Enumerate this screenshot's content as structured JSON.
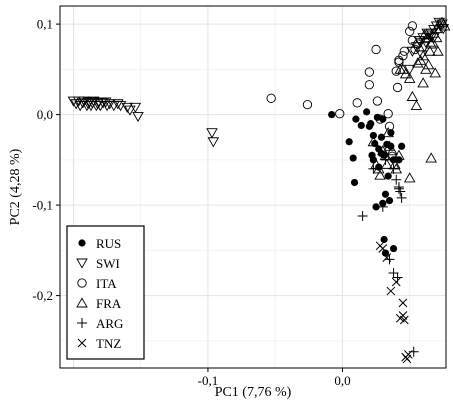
{
  "chart_data": {
    "type": "scatter",
    "title": "",
    "xlabel": "PC1 (7,76 %)",
    "ylabel": "PC2 (4,28 %)",
    "xlim": [
      -0.21,
      0.077
    ],
    "ylim": [
      -0.28,
      0.12
    ],
    "x_ticks": [
      -0.1,
      0.0
    ],
    "x_tick_labels": [
      "-0,1",
      "0,0"
    ],
    "y_ticks": [
      0.1,
      0.0,
      -0.1,
      -0.2
    ],
    "y_tick_labels": [
      "0,1",
      "0,0",
      "-0,1",
      "-0,2"
    ],
    "grid": true,
    "legend_position": "bottom-left",
    "series": [
      {
        "name": "RUS",
        "marker": "filled-circle",
        "points": [
          [
            -0.008,
            0.0
          ],
          [
            0.005,
            -0.03
          ],
          [
            0.009,
            -0.075
          ],
          [
            0.008,
            -0.048
          ],
          [
            0.01,
            -0.005
          ],
          [
            0.014,
            -0.012
          ],
          [
            0.02,
            -0.013
          ],
          [
            0.023,
            -0.023
          ],
          [
            0.024,
            -0.032
          ],
          [
            0.027,
            -0.038
          ],
          [
            0.03,
            -0.005
          ],
          [
            0.018,
            0.003
          ],
          [
            0.021,
            -0.01
          ],
          [
            0.026,
            -0.003
          ],
          [
            0.029,
            -0.043
          ],
          [
            0.031,
            -0.045
          ],
          [
            0.033,
            -0.033
          ],
          [
            0.036,
            -0.035
          ],
          [
            0.038,
            -0.05
          ],
          [
            0.034,
            -0.068
          ],
          [
            0.03,
            -0.098
          ],
          [
            0.025,
            -0.102
          ],
          [
            0.032,
            -0.088
          ],
          [
            0.035,
            -0.095
          ],
          [
            0.027,
            -0.058
          ],
          [
            0.031,
            -0.138
          ],
          [
            0.032,
            -0.153
          ],
          [
            0.038,
            -0.148
          ],
          [
            0.044,
            -0.035
          ],
          [
            0.042,
            -0.05
          ],
          [
            0.036,
            -0.02
          ],
          [
            0.029,
            -0.025
          ],
          [
            0.023,
            -0.05
          ],
          [
            0.022,
            -0.045
          ]
        ]
      },
      {
        "name": "SWI",
        "marker": "triangle-down",
        "points": [
          [
            -0.2,
            0.015
          ],
          [
            -0.198,
            0.012
          ],
          [
            -0.196,
            0.015
          ],
          [
            -0.195,
            0.01
          ],
          [
            -0.193,
            0.013
          ],
          [
            -0.192,
            0.015
          ],
          [
            -0.19,
            0.01
          ],
          [
            -0.189,
            0.012
          ],
          [
            -0.188,
            0.014
          ],
          [
            -0.187,
            0.01
          ],
          [
            -0.186,
            0.013
          ],
          [
            -0.185,
            0.015
          ],
          [
            -0.183,
            0.01
          ],
          [
            -0.182,
            0.012
          ],
          [
            -0.181,
            0.014
          ],
          [
            -0.18,
            0.01
          ],
          [
            -0.178,
            0.013
          ],
          [
            -0.176,
            0.014
          ],
          [
            -0.175,
            0.01
          ],
          [
            -0.173,
            0.012
          ],
          [
            -0.17,
            0.01
          ],
          [
            -0.167,
            0.012
          ],
          [
            -0.165,
            0.01
          ],
          [
            -0.16,
            0.008
          ],
          [
            -0.158,
            0.005
          ],
          [
            -0.154,
            0.008
          ],
          [
            -0.152,
            -0.002
          ],
          [
            -0.097,
            -0.02
          ],
          [
            -0.096,
            -0.03
          ],
          [
            0.05,
            0.05
          ],
          [
            0.052,
            0.07
          ],
          [
            0.055,
            0.075
          ],
          [
            0.058,
            0.08
          ],
          [
            0.06,
            0.085
          ],
          [
            0.062,
            0.08
          ],
          [
            0.064,
            0.088
          ],
          [
            0.066,
            0.09
          ],
          [
            0.068,
            0.094
          ],
          [
            0.07,
            0.098
          ],
          [
            0.072,
            0.102
          ],
          [
            0.074,
            0.1
          ],
          [
            0.075,
            0.095
          ],
          [
            0.068,
            0.085
          ],
          [
            0.063,
            0.09
          ],
          [
            0.057,
            0.082
          ],
          [
            0.059,
            0.066
          ],
          [
            0.061,
            0.075
          ]
        ]
      },
      {
        "name": "ITA",
        "marker": "open-circle",
        "points": [
          [
            -0.053,
            0.018
          ],
          [
            -0.026,
            0.011
          ],
          [
            -0.002,
            0.001
          ],
          [
            0.011,
            0.013
          ],
          [
            0.02,
            0.033
          ],
          [
            0.02,
            0.047
          ],
          [
            0.025,
            0.072
          ],
          [
            0.026,
            0.015
          ],
          [
            0.034,
            0.001
          ],
          [
            0.035,
            -0.013
          ],
          [
            0.037,
            -0.046
          ],
          [
            0.041,
            0.03
          ],
          [
            0.042,
            0.06
          ],
          [
            0.045,
            0.065
          ],
          [
            0.046,
            0.07
          ],
          [
            0.05,
            0.092
          ],
          [
            0.052,
            0.098
          ],
          [
            0.054,
            0.072
          ],
          [
            0.052,
            0.082
          ],
          [
            0.056,
            0.078
          ],
          [
            0.04,
            0.048
          ],
          [
            0.028,
            -0.005
          ],
          [
            0.042,
            0.058
          ]
        ]
      },
      {
        "name": "FRA",
        "marker": "triangle-up",
        "points": [
          [
            0.023,
            -0.03
          ],
          [
            0.025,
            -0.055
          ],
          [
            0.027,
            -0.06
          ],
          [
            0.028,
            -0.067
          ],
          [
            0.03,
            -0.04
          ],
          [
            0.032,
            -0.045
          ],
          [
            0.033,
            -0.055
          ],
          [
            0.034,
            -0.02
          ],
          [
            0.035,
            -0.035
          ],
          [
            0.037,
            -0.04
          ],
          [
            0.039,
            -0.055
          ],
          [
            0.04,
            -0.06
          ],
          [
            0.042,
            -0.045
          ],
          [
            0.043,
            0.05
          ],
          [
            0.045,
            0.05
          ],
          [
            0.047,
            0.045
          ],
          [
            0.05,
            0.04
          ],
          [
            0.05,
            -0.07
          ],
          [
            0.052,
            0.02
          ],
          [
            0.055,
            0.01
          ],
          [
            0.056,
            0.057
          ],
          [
            0.058,
            0.06
          ],
          [
            0.06,
            0.065
          ],
          [
            0.06,
            0.035
          ],
          [
            0.062,
            0.05
          ],
          [
            0.064,
            0.055
          ],
          [
            0.065,
            0.07
          ],
          [
            0.066,
            -0.048
          ],
          [
            0.067,
            0.08
          ],
          [
            0.068,
            0.09
          ],
          [
            0.07,
            0.095
          ],
          [
            0.072,
            0.1
          ],
          [
            0.074,
            0.102
          ],
          [
            0.076,
            0.098
          ],
          [
            0.07,
            0.085
          ],
          [
            0.071,
            0.07
          ],
          [
            0.066,
            0.078
          ],
          [
            0.063,
            0.085
          ],
          [
            0.061,
            0.088
          ],
          [
            0.069,
            0.046
          ]
        ]
      },
      {
        "name": "ARG",
        "marker": "plus",
        "points": [
          [
            0.015,
            -0.112
          ],
          [
            0.023,
            -0.06
          ],
          [
            0.03,
            -0.102
          ],
          [
            0.032,
            -0.05
          ],
          [
            0.038,
            -0.06
          ],
          [
            0.04,
            -0.072
          ],
          [
            0.042,
            -0.08
          ],
          [
            0.043,
            -0.085
          ],
          [
            0.044,
            -0.092
          ],
          [
            0.042,
            -0.082
          ],
          [
            0.035,
            -0.16
          ],
          [
            0.038,
            -0.175
          ],
          [
            0.041,
            -0.18
          ],
          [
            0.053,
            -0.262
          ]
        ]
      },
      {
        "name": "TNZ",
        "marker": "cross",
        "points": [
          [
            0.03,
            -0.148
          ],
          [
            0.028,
            -0.145
          ],
          [
            0.033,
            -0.158
          ],
          [
            0.036,
            -0.195
          ],
          [
            0.04,
            -0.185
          ],
          [
            0.045,
            -0.208
          ],
          [
            0.043,
            -0.225
          ],
          [
            0.045,
            -0.222
          ],
          [
            0.046,
            -0.227
          ],
          [
            0.047,
            -0.268
          ],
          [
            0.048,
            -0.27
          ],
          [
            0.049,
            -0.265
          ]
        ]
      }
    ]
  }
}
